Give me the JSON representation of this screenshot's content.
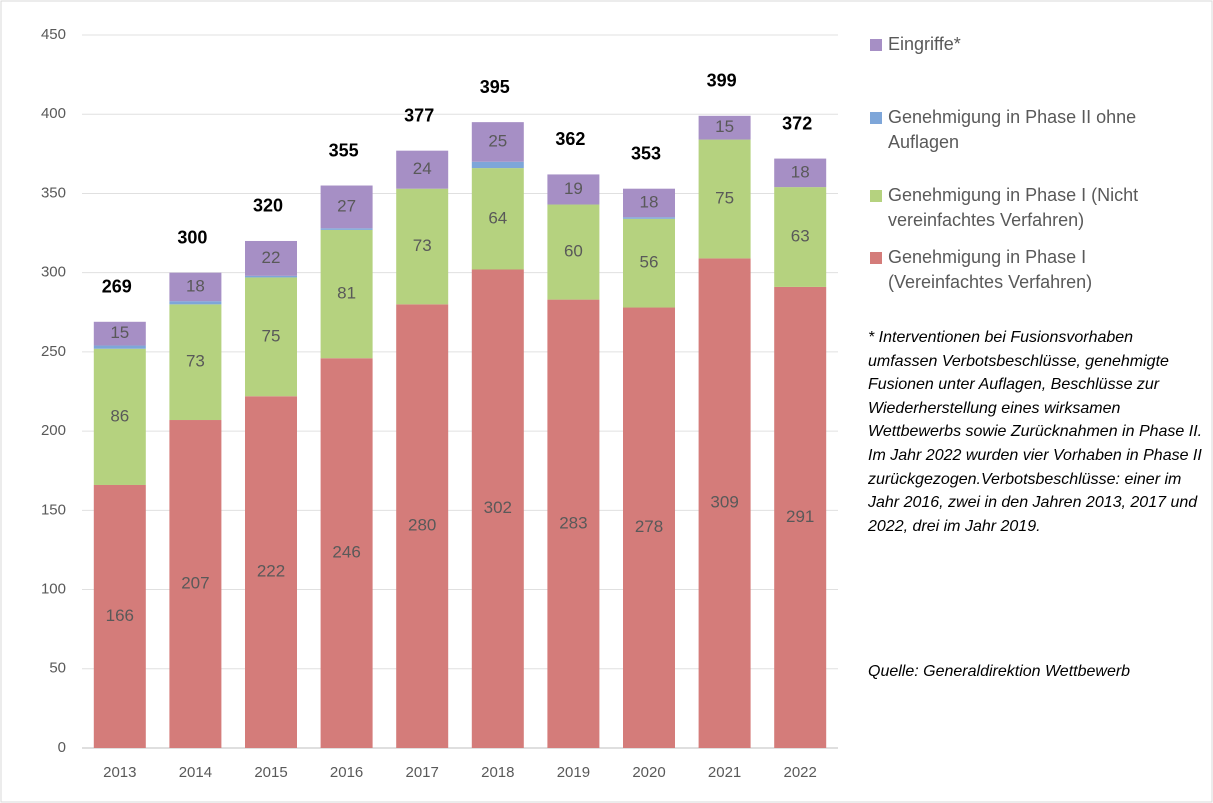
{
  "chart_data": {
    "type": "stacked_bar",
    "categories": [
      "2013",
      "2014",
      "2015",
      "2016",
      "2017",
      "2018",
      "2019",
      "2020",
      "2021",
      "2022"
    ],
    "series": [
      {
        "name": "Genehmigung in Phase I (Vereinfachtes Verfahren)",
        "color": "#d47c7a",
        "data_labels": true,
        "values": [
          166,
          207,
          222,
          246,
          280,
          302,
          283,
          278,
          309,
          291
        ]
      },
      {
        "name": "Genehmigung in Phase I (Nicht vereinfachtes Verfahren)",
        "color": "#b5d27f",
        "data_labels": true,
        "values": [
          86,
          73,
          75,
          81,
          73,
          64,
          60,
          56,
          75,
          63
        ]
      },
      {
        "name": "Genehmigung in Phase II ohne Auflagen",
        "color": "#7ea6d9",
        "data_labels": false,
        "values": [
          2,
          2,
          1,
          1,
          0,
          4,
          0,
          1,
          0,
          0
        ]
      },
      {
        "name": "Eingriffe*",
        "color": "#a68fc5",
        "data_labels": true,
        "values": [
          15,
          18,
          22,
          27,
          24,
          25,
          19,
          18,
          15,
          18
        ]
      }
    ],
    "totals": [
      269,
      300,
      320,
      355,
      377,
      395,
      362,
      353,
      399,
      372
    ],
    "ylim": [
      0,
      450
    ],
    "yticks": [
      0,
      50,
      100,
      150,
      200,
      250,
      300,
      350,
      400,
      450
    ],
    "grid": true,
    "legend": "right",
    "note": "* Interventionen bei Fusionsvorhaben umfassen Verbotsbeschlüsse, genehmigte Fusionen unter Auflagen, Beschlüsse zur Wiederherstellung eines wirksamen Wettbewerbs sowie Zurücknahmen in Phase II. Im Jahr 2022 wurden vier Vorhaben in Phase II zurückgezogen.Verbotsbeschlüsse: einer im Jahr 2016, zwei in den Jahren 2013, 2017 und 2022, drei im Jahr 2019.",
    "source": "Quelle: Generaldirektion Wettbewerb"
  }
}
